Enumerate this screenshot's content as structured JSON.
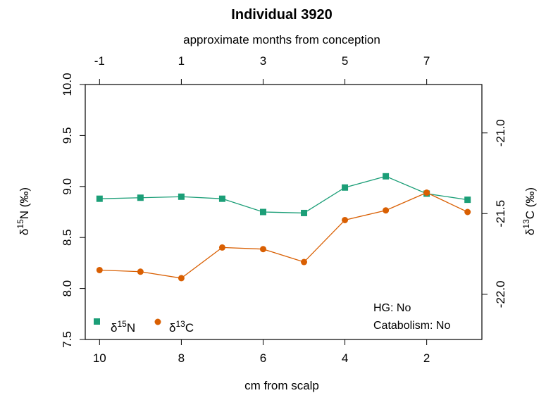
{
  "chart_data": {
    "type": "line",
    "title": "Individual 3920",
    "top_axis_label": "approximate months from conception",
    "top_ticks": [
      -1,
      1,
      3,
      5,
      7
    ],
    "top_tick_labels": [
      "-1",
      "1",
      "3",
      "5",
      "7"
    ],
    "xlabel": "cm from scalp",
    "x_ticks": [
      10,
      8,
      6,
      4,
      2
    ],
    "x_tick_labels": [
      "10",
      "8",
      "6",
      "4",
      "2"
    ],
    "xlim": [
      10.35,
      0.65
    ],
    "ylabel_left": "δ15N (‰)",
    "ylabel_left_parts": {
      "delta": "δ",
      "sup": "15",
      "rest": "N (‰)"
    },
    "ylim_left": [
      7.5,
      10.0
    ],
    "left_ticks": [
      7.5,
      8.0,
      8.5,
      9.0,
      9.5,
      10.0
    ],
    "left_tick_labels": [
      "7.5",
      "8.0",
      "8.5",
      "9.0",
      "9.5",
      "10.0"
    ],
    "ylabel_right": "δ13C (‰)",
    "ylabel_right_parts": {
      "delta": "δ",
      "sup": "13",
      "rest": "C (‰)"
    },
    "ylim_right": [
      -22.28,
      -20.7
    ],
    "right_ticks": [
      -22.0,
      -21.5,
      -21.0
    ],
    "right_tick_labels": [
      "-22.0",
      "-21.5",
      "-21.0"
    ],
    "grid": false,
    "legend_position": "bottom-left",
    "series": [
      {
        "name": "δ15N",
        "label_parts": {
          "delta": "δ",
          "sup": "15",
          "rest": "N"
        },
        "axis": "left",
        "marker": "square",
        "color": "#1b9e77",
        "x": [
          10,
          9,
          8,
          7,
          6,
          5,
          4,
          3,
          2,
          1
        ],
        "y": [
          8.88,
          8.89,
          8.9,
          8.88,
          8.75,
          8.74,
          8.99,
          9.1,
          8.93,
          8.87
        ]
      },
      {
        "name": "δ13C",
        "label_parts": {
          "delta": "δ",
          "sup": "13",
          "rest": "C"
        },
        "axis": "right",
        "marker": "circle",
        "color": "#d95f02",
        "x": [
          10,
          9,
          8,
          7,
          6,
          5,
          4,
          3,
          2,
          1
        ],
        "y": [
          -21.85,
          -21.86,
          -21.9,
          -21.71,
          -21.72,
          -21.8,
          -21.54,
          -21.48,
          -21.37,
          -21.49
        ]
      }
    ],
    "annotations": [
      "HG: No",
      "Catabolism: No"
    ]
  }
}
